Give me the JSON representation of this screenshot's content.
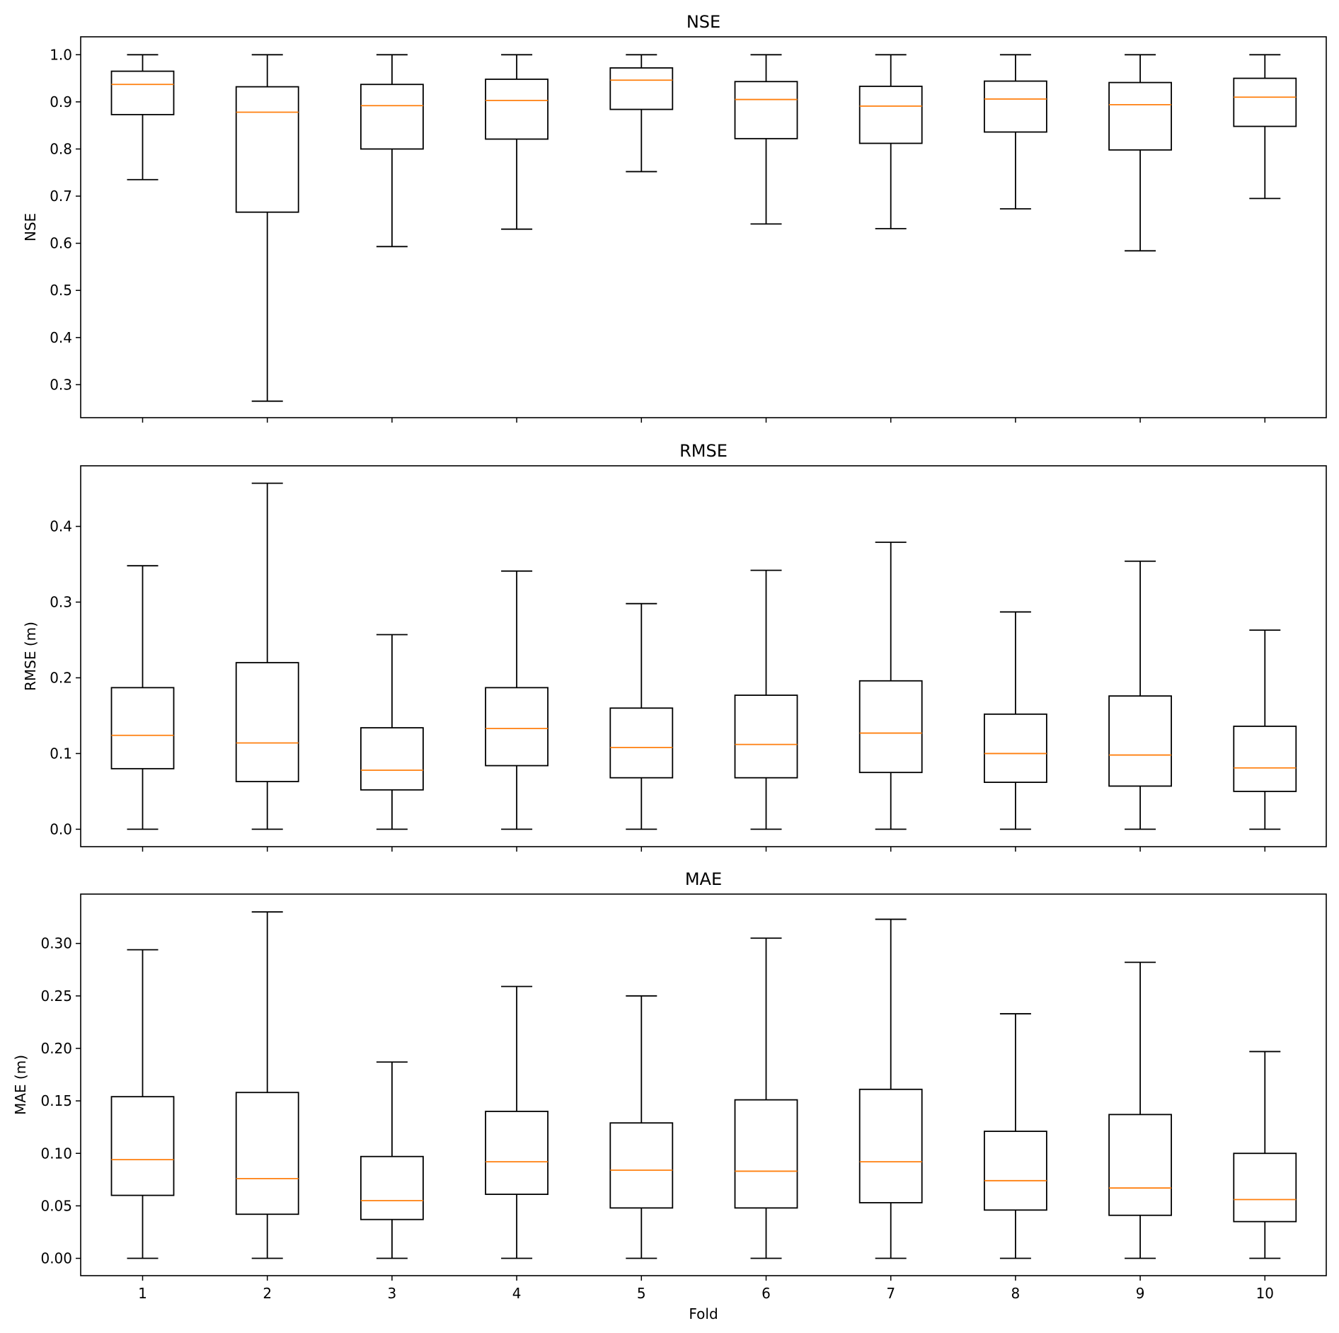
{
  "colors": {
    "box": "#000000",
    "median": "#ff7f0e",
    "background": "#ffffff"
  },
  "chart_data": [
    {
      "type": "box",
      "title": "NSE",
      "ylabel": "NSE",
      "xlabel": "",
      "ylim": [
        0.23,
        1.038
      ],
      "yticks": [
        0.3,
        0.4,
        0.5,
        0.6,
        0.7,
        0.8,
        0.9,
        1.0
      ],
      "ytick_labels": [
        "0.3",
        "0.4",
        "0.5",
        "0.6",
        "0.7",
        "0.8",
        "0.9",
        "1.0"
      ],
      "categories": [
        "1",
        "2",
        "3",
        "4",
        "5",
        "6",
        "7",
        "8",
        "9",
        "10"
      ],
      "show_xtick_labels": false,
      "boxes": [
        {
          "whislo": 0.735,
          "q1": 0.873,
          "med": 0.937,
          "q3": 0.965,
          "whishi": 1.0
        },
        {
          "whislo": 0.265,
          "q1": 0.666,
          "med": 0.878,
          "q3": 0.932,
          "whishi": 1.0
        },
        {
          "whislo": 0.593,
          "q1": 0.8,
          "med": 0.892,
          "q3": 0.937,
          "whishi": 1.0
        },
        {
          "whislo": 0.63,
          "q1": 0.821,
          "med": 0.903,
          "q3": 0.948,
          "whishi": 1.0
        },
        {
          "whislo": 0.752,
          "q1": 0.884,
          "med": 0.946,
          "q3": 0.972,
          "whishi": 1.0
        },
        {
          "whislo": 0.641,
          "q1": 0.822,
          "med": 0.905,
          "q3": 0.943,
          "whishi": 1.0
        },
        {
          "whislo": 0.631,
          "q1": 0.812,
          "med": 0.891,
          "q3": 0.933,
          "whishi": 1.0
        },
        {
          "whislo": 0.673,
          "q1": 0.836,
          "med": 0.906,
          "q3": 0.944,
          "whishi": 1.0
        },
        {
          "whislo": 0.584,
          "q1": 0.798,
          "med": 0.894,
          "q3": 0.941,
          "whishi": 1.0
        },
        {
          "whislo": 0.695,
          "q1": 0.848,
          "med": 0.91,
          "q3": 0.95,
          "whishi": 1.0
        }
      ]
    },
    {
      "type": "box",
      "title": "RMSE",
      "ylabel": "RMSE (m)",
      "xlabel": "",
      "ylim": [
        -0.023,
        0.48
      ],
      "yticks": [
        0.0,
        0.1,
        0.2,
        0.3,
        0.4
      ],
      "ytick_labels": [
        "0.0",
        "0.1",
        "0.2",
        "0.3",
        "0.4"
      ],
      "categories": [
        "1",
        "2",
        "3",
        "4",
        "5",
        "6",
        "7",
        "8",
        "9",
        "10"
      ],
      "show_xtick_labels": false,
      "boxes": [
        {
          "whislo": 0.0,
          "q1": 0.08,
          "med": 0.124,
          "q3": 0.187,
          "whishi": 0.348
        },
        {
          "whislo": 0.0,
          "q1": 0.063,
          "med": 0.114,
          "q3": 0.22,
          "whishi": 0.457
        },
        {
          "whislo": 0.0,
          "q1": 0.052,
          "med": 0.078,
          "q3": 0.134,
          "whishi": 0.257
        },
        {
          "whislo": 0.0,
          "q1": 0.084,
          "med": 0.133,
          "q3": 0.187,
          "whishi": 0.341
        },
        {
          "whislo": 0.0,
          "q1": 0.068,
          "med": 0.108,
          "q3": 0.16,
          "whishi": 0.298
        },
        {
          "whislo": 0.0,
          "q1": 0.068,
          "med": 0.112,
          "q3": 0.177,
          "whishi": 0.342
        },
        {
          "whislo": 0.0,
          "q1": 0.075,
          "med": 0.127,
          "q3": 0.196,
          "whishi": 0.379
        },
        {
          "whislo": 0.0,
          "q1": 0.062,
          "med": 0.1,
          "q3": 0.152,
          "whishi": 0.287
        },
        {
          "whislo": 0.0,
          "q1": 0.057,
          "med": 0.098,
          "q3": 0.176,
          "whishi": 0.354
        },
        {
          "whislo": 0.0,
          "q1": 0.05,
          "med": 0.081,
          "q3": 0.136,
          "whishi": 0.263
        }
      ]
    },
    {
      "type": "box",
      "title": "MAE",
      "ylabel": "MAE (m)",
      "xlabel": "Fold",
      "ylim": [
        -0.0165,
        0.347
      ],
      "yticks": [
        0.0,
        0.05,
        0.1,
        0.15,
        0.2,
        0.25,
        0.3
      ],
      "ytick_labels": [
        "0.00",
        "0.05",
        "0.10",
        "0.15",
        "0.20",
        "0.25",
        "0.30"
      ],
      "categories": [
        "1",
        "2",
        "3",
        "4",
        "5",
        "6",
        "7",
        "8",
        "9",
        "10"
      ],
      "show_xtick_labels": true,
      "boxes": [
        {
          "whislo": 0.0,
          "q1": 0.06,
          "med": 0.094,
          "q3": 0.154,
          "whishi": 0.294
        },
        {
          "whislo": 0.0,
          "q1": 0.042,
          "med": 0.076,
          "q3": 0.158,
          "whishi": 0.33
        },
        {
          "whislo": 0.0,
          "q1": 0.037,
          "med": 0.055,
          "q3": 0.097,
          "whishi": 0.187
        },
        {
          "whislo": 0.0,
          "q1": 0.061,
          "med": 0.092,
          "q3": 0.14,
          "whishi": 0.259
        },
        {
          "whislo": 0.0,
          "q1": 0.048,
          "med": 0.084,
          "q3": 0.129,
          "whishi": 0.25
        },
        {
          "whislo": 0.0,
          "q1": 0.048,
          "med": 0.083,
          "q3": 0.151,
          "whishi": 0.305
        },
        {
          "whislo": 0.0,
          "q1": 0.053,
          "med": 0.092,
          "q3": 0.161,
          "whishi": 0.323
        },
        {
          "whislo": 0.0,
          "q1": 0.046,
          "med": 0.074,
          "q3": 0.121,
          "whishi": 0.233
        },
        {
          "whislo": 0.0,
          "q1": 0.041,
          "med": 0.067,
          "q3": 0.137,
          "whishi": 0.282
        },
        {
          "whislo": 0.0,
          "q1": 0.035,
          "med": 0.056,
          "q3": 0.1,
          "whishi": 0.197
        }
      ]
    }
  ]
}
